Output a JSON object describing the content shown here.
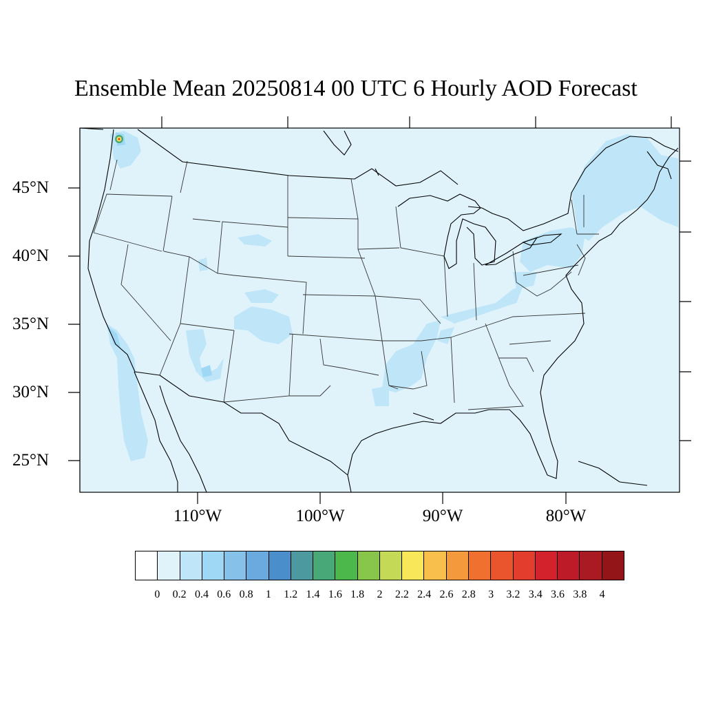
{
  "title": "Ensemble Mean 20250814 00 UTC 6 Hourly AOD Forecast",
  "lat_labels": [
    "45°N",
    "40°N",
    "35°N",
    "30°N",
    "25°N"
  ],
  "lon_labels": [
    "110°W",
    "100°W",
    "90°W",
    "80°W"
  ],
  "colorbar": {
    "levels": [
      "0",
      "0.2",
      "0.4",
      "0.6",
      "0.8",
      "1",
      "1.2",
      "1.4",
      "1.6",
      "1.8",
      "2",
      "2.2",
      "2.4",
      "2.6",
      "2.8",
      "3",
      "3.2",
      "3.4",
      "3.6",
      "3.8",
      "4"
    ],
    "colors": [
      "#ffffff",
      "#e0f3fb",
      "#bfe6f8",
      "#9fd8f4",
      "#85c1e9",
      "#6aaadf",
      "#4a8ecb",
      "#4c9aa0",
      "#48a878",
      "#4cb74a",
      "#87c54b",
      "#c4d956",
      "#f9e75a",
      "#f8bf4a",
      "#f59a3c",
      "#f07030",
      "#ea552e",
      "#e23d2d",
      "#d3222b",
      "#bd1b27",
      "#a91a23",
      "#931518"
    ]
  },
  "colors": {
    "background_aod": "#e0f3fb",
    "elevated_aod": "#bfe6f8",
    "frame": "#000000"
  }
}
